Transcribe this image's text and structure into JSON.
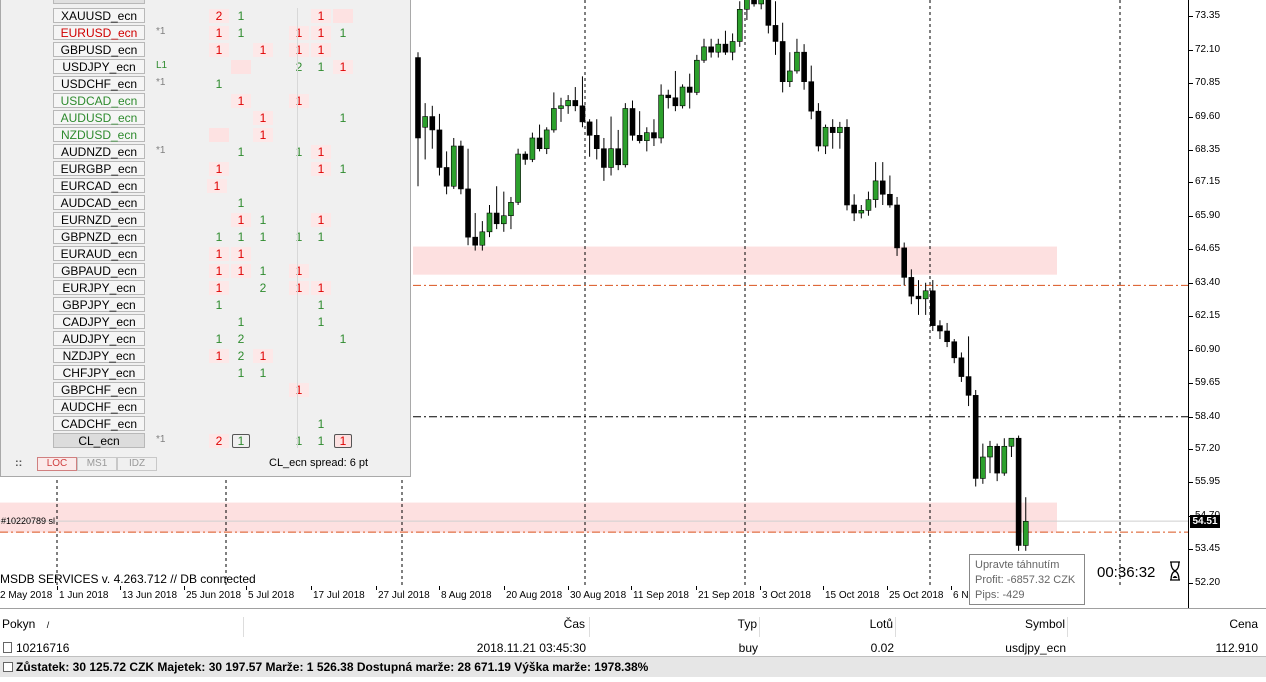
{
  "symbols": [
    {
      "name": "XAUUSD_ecn",
      "color": "#000000",
      "tag": "",
      "sel": false
    },
    {
      "name": "EURUSD_ecn",
      "color": "#d00000",
      "tag": "*1",
      "sel": false
    },
    {
      "name": "GBPUSD_ecn",
      "color": "#000000",
      "tag": "",
      "sel": false
    },
    {
      "name": "USDJPY_ecn",
      "color": "#000000",
      "tag": "L1",
      "sel": false
    },
    {
      "name": "USDCHF_ecn",
      "color": "#000000",
      "tag": "*1",
      "sel": false
    },
    {
      "name": "USDCAD_ecn",
      "color": "#2e8b2e",
      "tag": "",
      "sel": false
    },
    {
      "name": "AUDUSD_ecn",
      "color": "#2e8b2e",
      "tag": "",
      "sel": false
    },
    {
      "name": "NZDUSD_ecn",
      "color": "#2e8b2e",
      "tag": "",
      "sel": false
    },
    {
      "name": "AUDNZD_ecn",
      "color": "#000000",
      "tag": "*1",
      "sel": false
    },
    {
      "name": "EURGBP_ecn",
      "color": "#000000",
      "tag": "",
      "sel": false
    },
    {
      "name": "EURCAD_ecn",
      "color": "#000000",
      "tag": "",
      "sel": false
    },
    {
      "name": "AUDCAD_ecn",
      "color": "#000000",
      "tag": "",
      "sel": false
    },
    {
      "name": "EURNZD_ecn",
      "color": "#000000",
      "tag": "",
      "sel": false
    },
    {
      "name": "GBPNZD_ecn",
      "color": "#000000",
      "tag": "",
      "sel": false
    },
    {
      "name": "EURAUD_ecn",
      "color": "#000000",
      "tag": "",
      "sel": false
    },
    {
      "name": "GBPAUD_ecn",
      "color": "#000000",
      "tag": "",
      "sel": false
    },
    {
      "name": "EURJPY_ecn",
      "color": "#000000",
      "tag": "",
      "sel": false
    },
    {
      "name": "GBPJPY_ecn",
      "color": "#000000",
      "tag": "",
      "sel": false
    },
    {
      "name": "CADJPY_ecn",
      "color": "#000000",
      "tag": "",
      "sel": false
    },
    {
      "name": "AUDJPY_ecn",
      "color": "#000000",
      "tag": "",
      "sel": false
    },
    {
      "name": "NZDJPY_ecn",
      "color": "#000000",
      "tag": "",
      "sel": false
    },
    {
      "name": "CHFJPY_ecn",
      "color": "#000000",
      "tag": "",
      "sel": false
    },
    {
      "name": "GBPCHF_ecn",
      "color": "#000000",
      "tag": "",
      "sel": false
    },
    {
      "name": "AUDCHF_ecn",
      "color": "#000000",
      "tag": "",
      "sel": false
    },
    {
      "name": "CADCHF_ecn",
      "color": "#000000",
      "tag": "",
      "sel": false
    },
    {
      "name": "CL_ecn",
      "color": "#000000",
      "tag": "*1",
      "sel": true
    }
  ],
  "grid_rows": [
    [
      {
        "c": 0,
        "v": "2",
        "t": "r"
      },
      {
        "c": 1,
        "v": "1",
        "t": "g"
      },
      {
        "c": 4,
        "v": "1",
        "t": "r"
      },
      {
        "c": 5,
        "v": "",
        "t": "bg"
      }
    ],
    [
      {
        "c": 0,
        "v": "1",
        "t": "r"
      },
      {
        "c": 1,
        "v": "1",
        "t": "g"
      },
      {
        "c": 3,
        "v": "1",
        "t": "r"
      },
      {
        "c": 4,
        "v": "1",
        "t": "r"
      },
      {
        "c": 5,
        "v": "1",
        "t": "g"
      }
    ],
    [
      {
        "c": 0,
        "v": "1",
        "t": "r"
      },
      {
        "c": 2,
        "v": "1",
        "t": "r"
      },
      {
        "c": 3,
        "v": "1",
        "t": "r"
      },
      {
        "c": 4,
        "v": "1",
        "t": "r"
      }
    ],
    [
      {
        "c": 1,
        "v": "",
        "t": "bg"
      },
      {
        "c": 3,
        "v": "2",
        "t": "g"
      },
      {
        "c": 4,
        "v": "1",
        "t": "g"
      },
      {
        "c": 5,
        "v": "1",
        "t": "r"
      }
    ],
    [
      {
        "c": 0,
        "v": "1",
        "t": "g"
      }
    ],
    [
      {
        "c": 1,
        "v": "1",
        "t": "r"
      },
      {
        "c": 3,
        "v": "1",
        "t": "r"
      }
    ],
    [
      {
        "c": 2,
        "v": "1",
        "t": "r"
      },
      {
        "c": 5,
        "v": "1",
        "t": "g"
      }
    ],
    [
      {
        "c": 0,
        "v": "",
        "t": "bg"
      },
      {
        "c": 2,
        "v": "1",
        "t": "r"
      }
    ],
    [
      {
        "c": 1,
        "v": "1",
        "t": "g"
      },
      {
        "c": 3,
        "v": "1",
        "t": "g"
      },
      {
        "c": 4,
        "v": "1",
        "t": "r"
      }
    ],
    [
      {
        "c": 0,
        "v": "1",
        "t": "r"
      },
      {
        "c": 4,
        "v": "1",
        "t": "r"
      },
      {
        "c": 5,
        "v": "1",
        "t": "g"
      }
    ],
    [
      {
        "c": -1,
        "v": "1",
        "t": "r"
      }
    ],
    [
      {
        "c": 1,
        "v": "1",
        "t": "g"
      }
    ],
    [
      {
        "c": 1,
        "v": "1",
        "t": "r"
      },
      {
        "c": 2,
        "v": "1",
        "t": "g"
      },
      {
        "c": 4,
        "v": "1",
        "t": "r"
      }
    ],
    [
      {
        "c": 0,
        "v": "1",
        "t": "g"
      },
      {
        "c": 1,
        "v": "1",
        "t": "g"
      },
      {
        "c": 2,
        "v": "1",
        "t": "g"
      },
      {
        "c": 3,
        "v": "1",
        "t": "g"
      },
      {
        "c": 4,
        "v": "1",
        "t": "g"
      }
    ],
    [
      {
        "c": 0,
        "v": "1",
        "t": "r"
      },
      {
        "c": 1,
        "v": "1",
        "t": "r"
      }
    ],
    [
      {
        "c": -1,
        "v": "1",
        "t": "g"
      },
      {
        "c": 0,
        "v": "1",
        "t": "r"
      },
      {
        "c": 1,
        "v": "1",
        "t": "r"
      },
      {
        "c": 2,
        "v": "1",
        "t": "g"
      },
      {
        "c": 3,
        "v": "1",
        "t": "r"
      }
    ],
    [
      {
        "c": 0,
        "v": "1",
        "t": "r"
      },
      {
        "c": 2,
        "v": "2",
        "t": "g"
      },
      {
        "c": 3,
        "v": "1",
        "t": "r"
      },
      {
        "c": 4,
        "v": "1",
        "t": "r"
      }
    ],
    [
      {
        "c": 0,
        "v": "1",
        "t": "g"
      },
      {
        "c": 4,
        "v": "1",
        "t": "g"
      }
    ],
    [
      {
        "c": 1,
        "v": "1",
        "t": "g"
      },
      {
        "c": 4,
        "v": "1",
        "t": "g"
      }
    ],
    [
      {
        "c": 0,
        "v": "1",
        "t": "g"
      },
      {
        "c": 1,
        "v": "2",
        "t": "g"
      },
      {
        "c": 5,
        "v": "1",
        "t": "g"
      }
    ],
    [
      {
        "c": 0,
        "v": "1",
        "t": "r"
      },
      {
        "c": 1,
        "v": "2",
        "t": "g"
      },
      {
        "c": 2,
        "v": "1",
        "t": "r"
      }
    ],
    [
      {
        "c": 1,
        "v": "1",
        "t": "g"
      },
      {
        "c": 2,
        "v": "1",
        "t": "g"
      }
    ],
    [
      {
        "c": 3,
        "v": "1",
        "t": "r"
      }
    ],
    [],
    [
      {
        "c": 4,
        "v": "1",
        "t": "g"
      }
    ],
    [
      {
        "c": 0,
        "v": "2",
        "t": "r"
      },
      {
        "c": 1,
        "v": "1",
        "t": "gb"
      },
      {
        "c": 3,
        "v": "1",
        "t": "g"
      },
      {
        "c": 4,
        "v": "1",
        "t": "g"
      },
      {
        "c": 5,
        "v": "1",
        "t": "rb"
      }
    ]
  ],
  "panel": {
    "modes": [
      "LOC",
      "MS1",
      "IDZ"
    ],
    "spread": "CL_ecn spread: 6 pt",
    "menu_glyph": "::"
  },
  "chart": {
    "status": "MSDB SERVICES v. 4.263.712 // DB connected",
    "order_label": "#10220789 sl",
    "current_price": "54.51",
    "timer": "00:36:32",
    "price_labels": [
      "73.35",
      "72.10",
      "70.85",
      "69.60",
      "68.35",
      "67.15",
      "65.90",
      "64.65",
      "63.40",
      "62.15",
      "60.90",
      "59.65",
      "58.40",
      "57.20",
      "55.95",
      "54.70",
      "53.45",
      "52.20"
    ],
    "date_labels": [
      "2 May 2018",
      "1 Jun 2018",
      "13 Jun 2018",
      "25 Jun 2018",
      "5 Jul 2018",
      "17 Jul 2018",
      "27 Jul 2018",
      "8 Aug 2018",
      "20 Aug 2018",
      "30 Aug 2018",
      "11 Sep 2018",
      "21 Sep 2018",
      "3 Oct 2018",
      "15 Oct 2018",
      "25 Oct 2018",
      "6 N"
    ],
    "tooltip": {
      "title": "Upravte táhnutím",
      "profit": "Profit: -6857.32 CZK",
      "pips": "Pips: -429"
    }
  },
  "terminal": {
    "headers": {
      "order": "Pokyn",
      "sort": "/",
      "time": "Čas",
      "type": "Typ",
      "lots": "Lotů",
      "symbol": "Symbol",
      "price": "Cena"
    },
    "row": {
      "order": "10216716",
      "time": "2018.11.21 03:45:30",
      "type": "buy",
      "lots": "0.02",
      "symbol": "usdjpy_ecn",
      "price": "112.910"
    },
    "summary": "Zůstatek: 30 125.72 CZK  Majetek: 30 197.57  Marže: 1 526.38  Dostupná marže: 28 671.19  Výška marže: 1978.38%"
  },
  "colors": {
    "bull": "#2ca02c",
    "bear": "#000000",
    "zone": "#fde0e0",
    "red_line": "#d9531e",
    "red": "#e00000",
    "green": "#2e8b2e"
  },
  "chart_data": {
    "type": "candlestick",
    "candles": [
      [
        71.8,
        72.0,
        67.0,
        68.8
      ],
      [
        69.2,
        70.1,
        68.0,
        69.6
      ],
      [
        69.6,
        70.0,
        68.4,
        69.1
      ],
      [
        69.1,
        69.7,
        67.4,
        67.7
      ],
      [
        67.7,
        68.3,
        66.7,
        67.0
      ],
      [
        67.0,
        68.8,
        66.9,
        68.5
      ],
      [
        68.5,
        68.7,
        66.7,
        66.9
      ],
      [
        66.9,
        68.4,
        64.8,
        65.1
      ],
      [
        65.1,
        66.0,
        64.6,
        64.8
      ],
      [
        64.8,
        65.7,
        64.6,
        65.3
      ],
      [
        65.3,
        66.3,
        65.1,
        66.0
      ],
      [
        66.0,
        67.0,
        65.4,
        65.6
      ],
      [
        65.6,
        66.8,
        65.3,
        65.9
      ],
      [
        65.9,
        66.6,
        65.4,
        66.4
      ],
      [
        66.4,
        68.4,
        66.3,
        68.2
      ],
      [
        68.2,
        68.3,
        67.8,
        68.0
      ],
      [
        68.0,
        69.0,
        67.9,
        68.8
      ],
      [
        68.8,
        69.3,
        68.3,
        68.4
      ],
      [
        68.4,
        69.2,
        68.2,
        69.1
      ],
      [
        69.1,
        70.5,
        69.0,
        69.9
      ],
      [
        69.9,
        70.3,
        69.4,
        70.0
      ],
      [
        70.0,
        70.4,
        69.7,
        70.2
      ],
      [
        70.2,
        70.7,
        69.8,
        70.0
      ],
      [
        70.0,
        71.1,
        69.2,
        69.4
      ],
      [
        69.4,
        69.5,
        68.1,
        68.9
      ],
      [
        68.9,
        69.5,
        68.0,
        68.4
      ],
      [
        68.4,
        68.8,
        67.2,
        67.7
      ],
      [
        67.7,
        69.6,
        67.4,
        68.4
      ],
      [
        68.4,
        69.1,
        67.6,
        67.8
      ],
      [
        67.8,
        70.1,
        67.7,
        69.9
      ],
      [
        69.9,
        70.2,
        68.7,
        68.9
      ],
      [
        68.9,
        69.8,
        68.6,
        68.7
      ],
      [
        68.7,
        69.2,
        68.3,
        69.0
      ],
      [
        69.0,
        69.5,
        68.5,
        68.8
      ],
      [
        68.8,
        70.8,
        68.6,
        70.4
      ],
      [
        70.4,
        70.6,
        69.9,
        70.3
      ],
      [
        70.3,
        71.3,
        69.8,
        70.0
      ],
      [
        70.0,
        70.8,
        69.9,
        70.7
      ],
      [
        70.7,
        71.2,
        69.9,
        70.5
      ],
      [
        70.5,
        71.9,
        70.4,
        71.7
      ],
      [
        71.7,
        72.5,
        71.6,
        72.2
      ],
      [
        72.2,
        72.5,
        71.8,
        72.0
      ],
      [
        72.0,
        72.5,
        71.8,
        72.3
      ],
      [
        72.3,
        72.8,
        71.9,
        72.0
      ],
      [
        72.0,
        72.7,
        71.7,
        72.4
      ],
      [
        72.4,
        73.9,
        72.2,
        73.6
      ],
      [
        73.6,
        74.5,
        73.2,
        74.1
      ],
      [
        74.1,
        74.9,
        73.7,
        73.8
      ],
      [
        73.8,
        74.9,
        73.6,
        74.2
      ],
      [
        74.2,
        74.8,
        72.7,
        73.0
      ],
      [
        73.0,
        73.9,
        71.9,
        72.4
      ],
      [
        72.4,
        73.1,
        70.5,
        70.9
      ],
      [
        70.9,
        72.0,
        70.7,
        71.3
      ],
      [
        71.3,
        72.5,
        71.2,
        72.0
      ],
      [
        72.0,
        72.3,
        70.6,
        70.9
      ],
      [
        70.9,
        71.5,
        69.5,
        69.8
      ],
      [
        69.8,
        70.1,
        68.3,
        68.5
      ],
      [
        68.5,
        69.3,
        68.2,
        69.2
      ],
      [
        69.2,
        69.5,
        68.4,
        69.0
      ],
      [
        69.0,
        69.4,
        68.4,
        69.2
      ],
      [
        69.2,
        69.5,
        66.1,
        66.3
      ],
      [
        66.3,
        66.7,
        65.7,
        66.0
      ],
      [
        66.0,
        66.3,
        65.8,
        66.1
      ],
      [
        66.1,
        66.8,
        65.9,
        66.5
      ],
      [
        66.5,
        67.9,
        66.2,
        67.2
      ],
      [
        67.2,
        67.9,
        66.3,
        66.7
      ],
      [
        66.7,
        67.4,
        66.2,
        66.3
      ],
      [
        66.3,
        66.6,
        64.4,
        64.7
      ],
      [
        64.7,
        64.9,
        63.3,
        63.6
      ],
      [
        63.6,
        63.9,
        62.6,
        62.9
      ],
      [
        62.9,
        63.5,
        62.2,
        62.8
      ],
      [
        62.8,
        63.4,
        62.2,
        63.1
      ],
      [
        63.1,
        63.5,
        61.6,
        61.8
      ],
      [
        61.8,
        62.0,
        61.3,
        61.6
      ],
      [
        61.6,
        61.9,
        61.0,
        61.2
      ],
      [
        61.2,
        61.3,
        60.4,
        60.6
      ],
      [
        60.6,
        60.8,
        59.7,
        59.9
      ],
      [
        59.9,
        61.4,
        58.8,
        59.2
      ],
      [
        59.2,
        59.4,
        55.8,
        56.1
      ],
      [
        56.1,
        57.4,
        55.9,
        56.9
      ],
      [
        56.9,
        57.5,
        56.3,
        57.3
      ],
      [
        57.3,
        57.4,
        56.0,
        56.3
      ],
      [
        56.3,
        57.6,
        56.2,
        57.3
      ],
      [
        57.3,
        57.6,
        56.9,
        57.6
      ],
      [
        57.6,
        57.7,
        53.4,
        53.6
      ],
      [
        53.6,
        55.4,
        53.4,
        54.5
      ]
    ]
  }
}
